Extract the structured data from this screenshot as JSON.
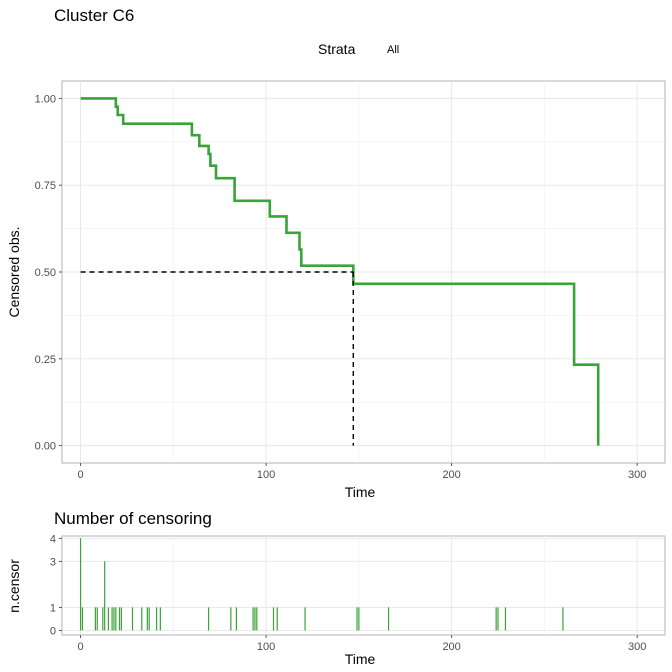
{
  "chart_data": [
    {
      "type": "line",
      "title": "Cluster C6",
      "xlabel": "Time",
      "ylabel": "Censored obs.",
      "xlim": [
        -10,
        315
      ],
      "ylim": [
        -0.05,
        1.05
      ],
      "x_ticks": [
        0,
        100,
        200,
        300
      ],
      "x_tick_labels": [
        "0",
        "100",
        "200",
        "300"
      ],
      "y_ticks": [
        0,
        0.25,
        0.5,
        0.75,
        1.0
      ],
      "y_tick_labels": [
        "0.00",
        "0.25",
        "0.50",
        "0.75",
        "1.00"
      ],
      "grid": true,
      "legend": {
        "title": "Strata",
        "position": "top",
        "entries": [
          "All"
        ]
      },
      "series": [
        {
          "name": "All",
          "color": "#3aa33a",
          "step": true,
          "points": [
            [
              0,
              1.0
            ],
            [
              19,
              1.0
            ],
            [
              19,
              0.976
            ],
            [
              20,
              0.976
            ],
            [
              20,
              0.952
            ],
            [
              23,
              0.952
            ],
            [
              23,
              0.927
            ],
            [
              60,
              0.927
            ],
            [
              60,
              0.894
            ],
            [
              64,
              0.894
            ],
            [
              64,
              0.863
            ],
            [
              69,
              0.863
            ],
            [
              69,
              0.84
            ],
            [
              70,
              0.84
            ],
            [
              70,
              0.806
            ],
            [
              73,
              0.806
            ],
            [
              73,
              0.77
            ],
            [
              83,
              0.77
            ],
            [
              83,
              0.705
            ],
            [
              102,
              0.705
            ],
            [
              102,
              0.66
            ],
            [
              111,
              0.66
            ],
            [
              111,
              0.613
            ],
            [
              118,
              0.613
            ],
            [
              118,
              0.565
            ],
            [
              119,
              0.565
            ],
            [
              119,
              0.518
            ],
            [
              147,
              0.518
            ],
            [
              147,
              0.466
            ],
            [
              266,
              0.466
            ],
            [
              266,
              0.233
            ],
            [
              279,
              0.233
            ],
            [
              279,
              0.0
            ]
          ]
        }
      ],
      "median_reference": {
        "y": 0.5,
        "x": 147,
        "linestyle": "dashed",
        "color": "#000000"
      }
    },
    {
      "type": "bar",
      "title": "Number of censoring",
      "xlabel": "Time",
      "ylabel": "n.censor",
      "xlim": [
        -10,
        315
      ],
      "ylim": [
        -0.2,
        4.1
      ],
      "x_ticks": [
        0,
        100,
        200,
        300
      ],
      "x_tick_labels": [
        "0",
        "100",
        "200",
        "300"
      ],
      "y_ticks": [
        0,
        1,
        3,
        4
      ],
      "y_tick_labels": [
        "0",
        "1",
        "3",
        "4"
      ],
      "grid": true,
      "color": "#3aa33a",
      "series": [
        {
          "x": [
            0,
            1,
            8,
            9,
            12,
            13,
            15,
            17,
            18,
            19,
            21,
            22,
            28,
            33,
            36,
            37,
            41,
            43,
            69,
            81,
            84,
            93,
            94,
            95,
            104,
            106,
            121,
            149,
            150,
            166,
            224,
            225,
            229,
            260
          ],
          "values": [
            4,
            1,
            1,
            1,
            1,
            3,
            1,
            1,
            1,
            1,
            1,
            1,
            1,
            1,
            1,
            1,
            1,
            1,
            1,
            1,
            1,
            1,
            1,
            1,
            1,
            1,
            1,
            1,
            1,
            1,
            1,
            1,
            1,
            1
          ]
        }
      ]
    }
  ]
}
